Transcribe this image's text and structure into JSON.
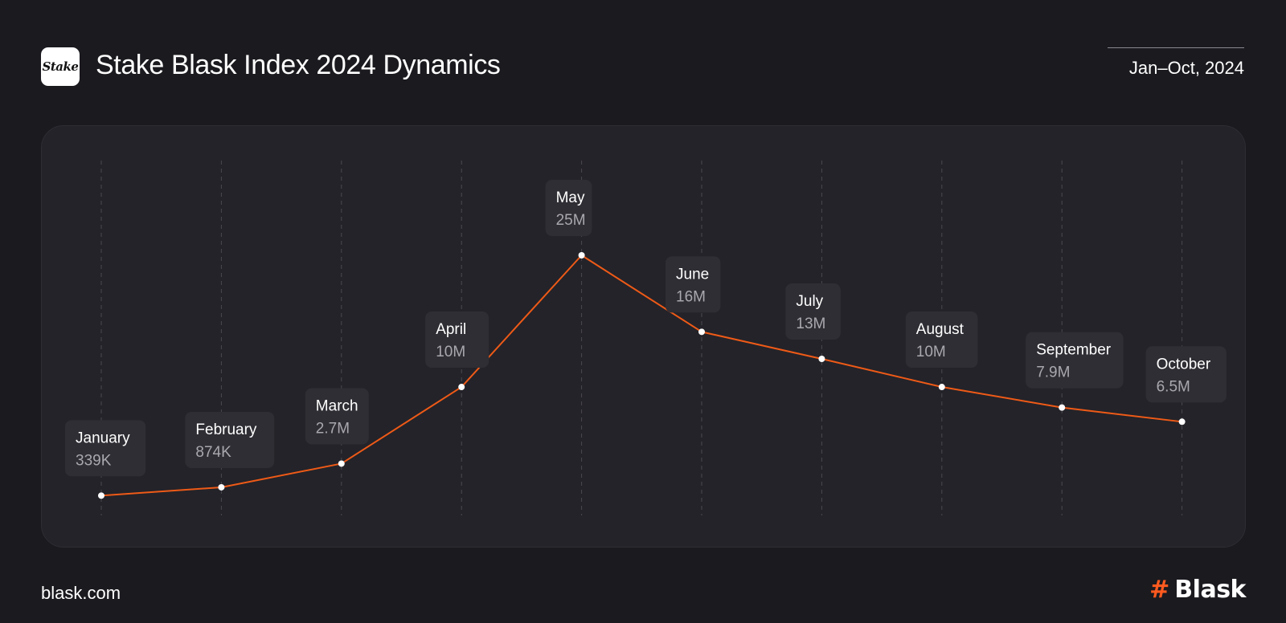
{
  "header": {
    "logo_text": "Stake",
    "title": "Stake Blask Index 2024 Dynamics",
    "date_range": "Jan–Oct, 2024"
  },
  "footer": {
    "site": "blask.com",
    "brand_mark": "#",
    "brand_name": "Blask"
  },
  "colors": {
    "line": "#ee5a17",
    "point": "#ffffff",
    "label_bg": "#2f2e34",
    "label_value": "#a9a8ae",
    "gridline": "#4a4950"
  },
  "chart_data": {
    "type": "line",
    "categories": [
      "January",
      "February",
      "March",
      "April",
      "May",
      "June",
      "July",
      "August",
      "September",
      "October"
    ],
    "values": [
      339000,
      874000,
      2700000,
      10000000,
      25000000,
      16000000,
      13000000,
      10000000,
      7900000,
      6500000
    ],
    "value_labels": [
      "339K",
      "874K",
      "2.7M",
      "10M",
      "25M",
      "16M",
      "13M",
      "10M",
      "7.9M",
      "6.5M"
    ],
    "grid": "vertical-dashed"
  }
}
